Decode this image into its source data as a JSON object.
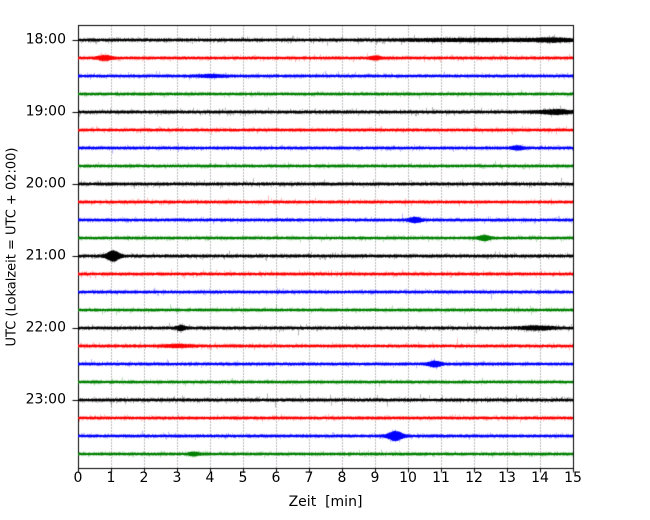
{
  "figure": {
    "background": "#ffffff",
    "frame_color": "#000000",
    "grid_color": "#777777"
  },
  "chart_data": {
    "type": "line",
    "subtype": "helicorder-drum-plot",
    "title": "",
    "xlabel": "Zeit  [min]",
    "ylabel": "UTC (Lokalzeit = UTC + 02:00)",
    "xlim": [
      0,
      15
    ],
    "minutes_per_row": 15,
    "x_ticks": [
      "0",
      "1",
      "2",
      "3",
      "4",
      "5",
      "6",
      "7",
      "8",
      "9",
      "10",
      "11",
      "12",
      "13",
      "14",
      "15"
    ],
    "y_ticks": [
      "18:00",
      "19:00",
      "20:00",
      "21:00",
      "22:00",
      "23:00"
    ],
    "grid": "vertical dotted line at every minute",
    "legend": "none",
    "color_cycle": [
      "#000000",
      "#ff0000",
      "#0000ff",
      "#008000"
    ],
    "events_note": "events are [position_min, amplitude_px, width_min]",
    "traces": [
      {
        "start": "18:00",
        "color": "#000000",
        "noise": 1.15,
        "events": [
          [
            12.0,
            0.8,
            1.5
          ],
          [
            14.4,
            1.1,
            0.4
          ]
        ]
      },
      {
        "start": "18:15",
        "color": "#ff0000",
        "noise": 1.0,
        "events": [
          [
            0.8,
            1.8,
            0.15
          ],
          [
            9.0,
            1.3,
            0.12
          ]
        ]
      },
      {
        "start": "18:30",
        "color": "#0000ff",
        "noise": 1.0,
        "events": [
          [
            4.0,
            0.8,
            0.3
          ]
        ]
      },
      {
        "start": "18:45",
        "color": "#008000",
        "noise": 0.95,
        "events": []
      },
      {
        "start": "19:00",
        "color": "#000000",
        "noise": 1.15,
        "events": [
          [
            14.45,
            1.6,
            0.35
          ]
        ]
      },
      {
        "start": "19:15",
        "color": "#ff0000",
        "noise": 1.0,
        "events": []
      },
      {
        "start": "19:30",
        "color": "#0000ff",
        "noise": 1.0,
        "events": [
          [
            13.3,
            1.4,
            0.13
          ]
        ]
      },
      {
        "start": "19:45",
        "color": "#008000",
        "noise": 0.95,
        "events": []
      },
      {
        "start": "20:00",
        "color": "#000000",
        "noise": 1.15,
        "events": []
      },
      {
        "start": "20:15",
        "color": "#ff0000",
        "noise": 1.0,
        "events": []
      },
      {
        "start": "20:30",
        "color": "#0000ff",
        "noise": 1.0,
        "events": [
          [
            10.2,
            1.9,
            0.14
          ]
        ]
      },
      {
        "start": "20:45",
        "color": "#008000",
        "noise": 0.95,
        "events": [
          [
            12.3,
            1.9,
            0.13
          ]
        ]
      },
      {
        "start": "21:00",
        "color": "#000000",
        "noise": 1.15,
        "events": [
          [
            1.05,
            4.3,
            0.14
          ]
        ]
      },
      {
        "start": "21:15",
        "color": "#ff0000",
        "noise": 1.05,
        "events": []
      },
      {
        "start": "21:30",
        "color": "#0000ff",
        "noise": 1.0,
        "events": []
      },
      {
        "start": "21:45",
        "color": "#008000",
        "noise": 0.95,
        "events": []
      },
      {
        "start": "22:00",
        "color": "#000000",
        "noise": 1.15,
        "events": [
          [
            3.1,
            1.7,
            0.1
          ],
          [
            13.9,
            1.3,
            0.35
          ]
        ]
      },
      {
        "start": "22:15",
        "color": "#ff0000",
        "noise": 1.05,
        "events": [
          [
            3.0,
            0.9,
            0.3
          ]
        ]
      },
      {
        "start": "22:30",
        "color": "#0000ff",
        "noise": 1.0,
        "events": [
          [
            10.8,
            2.1,
            0.14
          ]
        ]
      },
      {
        "start": "22:45",
        "color": "#008000",
        "noise": 0.95,
        "events": []
      },
      {
        "start": "23:00",
        "color": "#000000",
        "noise": 1.25,
        "events": []
      },
      {
        "start": "23:15",
        "color": "#ff0000",
        "noise": 1.0,
        "events": []
      },
      {
        "start": "23:30",
        "color": "#0000ff",
        "noise": 1.0,
        "events": [
          [
            9.6,
            3.8,
            0.16
          ]
        ]
      },
      {
        "start": "23:45",
        "color": "#008000",
        "noise": 0.95,
        "events": [
          [
            3.5,
            1.3,
            0.12
          ]
        ]
      }
    ]
  }
}
